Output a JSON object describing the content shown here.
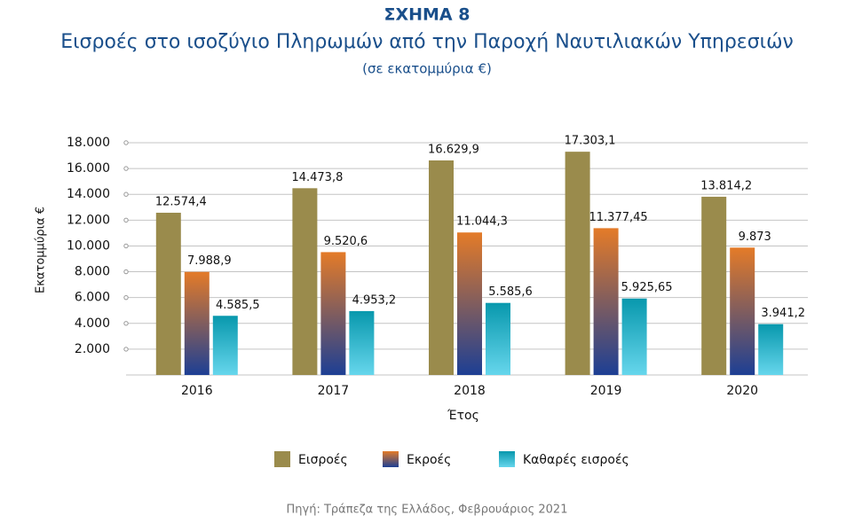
{
  "chart_data": {
    "type": "bar",
    "title": "ΣΧΗΜΑ 8",
    "subtitle": "Εισροές στο ισοζύγιο Πληρωμών από την Παροχή Ναυτιλιακών Υπηρεσιών",
    "unit_note": "(σε εκατομμύρια €)",
    "y_label": "Εκατομμύρια €",
    "x_label": "Έτος",
    "source": "Πηγή: Τράπεζα της Ελλάδος, Φεβρουάριος 2021",
    "categories": [
      "2016",
      "2017",
      "2018",
      "2019",
      "2020"
    ],
    "series": [
      {
        "name": "Εισροές",
        "color": "#9a8b4c",
        "color_bottom": "#9a8b4c",
        "values": [
          12574.4,
          14473.8,
          16629.9,
          17303.1,
          13814.2
        ],
        "value_labels": [
          "12.574,4",
          "14.473,8",
          "16.629,9",
          "17.303,1",
          "13.814,2"
        ]
      },
      {
        "name": "Εκροές",
        "color": "#e47b28",
        "color_bottom": "#1d3f94",
        "values": [
          7988.9,
          9520.6,
          11044.3,
          11377.45,
          9873
        ],
        "value_labels": [
          "7.988,9",
          "9.520,6",
          "11.044,3",
          "11.377,45",
          "9.873"
        ]
      },
      {
        "name": "Καθαρές εισροές",
        "color": "#0898ad",
        "color_bottom": "#66d6ec",
        "values": [
          4585.5,
          4953.2,
          5585.6,
          5925.65,
          3941.2
        ],
        "value_labels": [
          "4.585,5",
          "4.953,2",
          "5.585,6",
          "5.925,65",
          "3.941,2"
        ]
      }
    ],
    "ylim": [
      0,
      18000
    ],
    "yticks": [
      {
        "value": 2000,
        "label": "2.000"
      },
      {
        "value": 4000,
        "label": "4.000"
      },
      {
        "value": 6000,
        "label": "6.000"
      },
      {
        "value": 8000,
        "label": "8.000"
      },
      {
        "value": 10000,
        "label": "10.000"
      },
      {
        "value": 12000,
        "label": "12.000"
      },
      {
        "value": 14000,
        "label": "14.000"
      },
      {
        "value": 16000,
        "label": "16.000"
      },
      {
        "value": 18000,
        "label": "18.000"
      }
    ],
    "grid": true
  }
}
